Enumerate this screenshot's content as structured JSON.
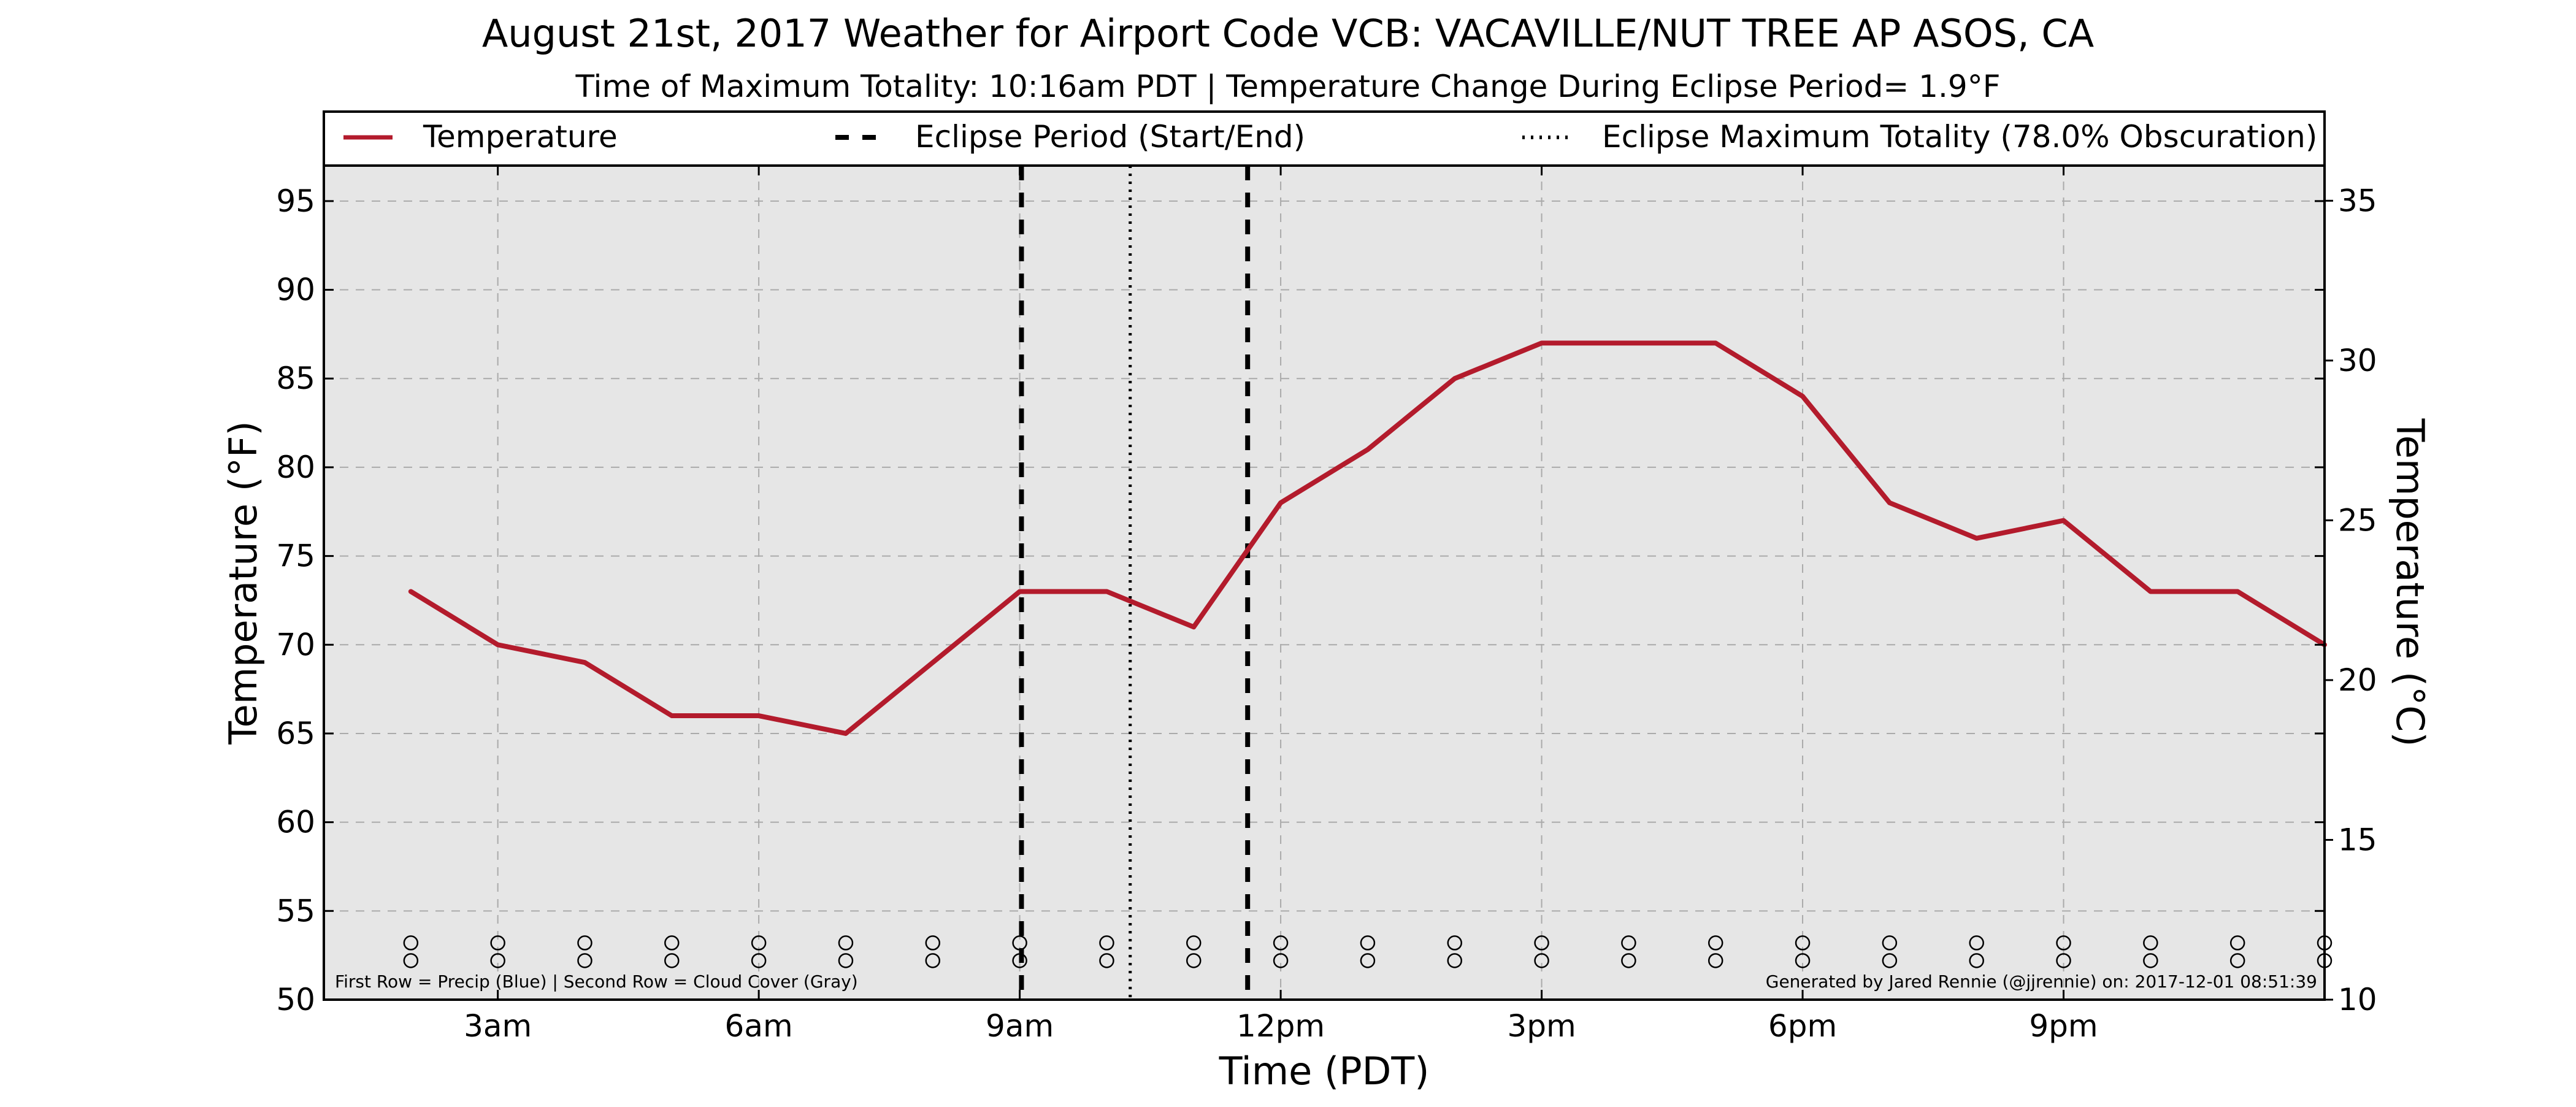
{
  "chart_data": {
    "type": "line",
    "title": "August 21st, 2017 Weather for Airport Code VCB: VACAVILLE/NUT TREE AP ASOS, CA",
    "subtitle": "Time of Maximum Totality: 10:16am PDT | Temperature Change During Eclipse Period= 1.9°F",
    "xlabel": "Time (PDT)",
    "ylabel": "Temperature (°F)",
    "ylabel_right": "Temperature (°C)",
    "xlim": [
      1.0,
      24.0
    ],
    "ylim": [
      50,
      97
    ],
    "ylim_right": [
      10,
      36.1
    ],
    "x_ticks": [
      {
        "x": 3,
        "label": "3am"
      },
      {
        "x": 6,
        "label": "6am"
      },
      {
        "x": 9,
        "label": "9am"
      },
      {
        "x": 12,
        "label": "12pm"
      },
      {
        "x": 15,
        "label": "3pm"
      },
      {
        "x": 18,
        "label": "6pm"
      },
      {
        "x": 21,
        "label": "9pm"
      }
    ],
    "y_ticks": [
      50,
      55,
      60,
      65,
      70,
      75,
      80,
      85,
      90,
      95
    ],
    "y_ticks_right": [
      10,
      15,
      20,
      25,
      30,
      35
    ],
    "grid": true,
    "legend_position": "top",
    "series": [
      {
        "name": "Temperature",
        "color": "#b31b2c",
        "x": [
          2,
          3,
          4,
          5,
          6,
          7,
          8,
          9,
          10,
          11,
          12,
          13,
          14,
          15,
          16,
          17,
          18,
          19,
          20,
          21,
          22,
          23,
          24
        ],
        "y": [
          73,
          70,
          69,
          66,
          66,
          65,
          69,
          73,
          73,
          71,
          78,
          81,
          85,
          87,
          87,
          87,
          84,
          78,
          76,
          77,
          73,
          73,
          70
        ]
      }
    ],
    "vertical_lines": [
      {
        "name": "Eclipse Period (Start/End)",
        "style": "dashed",
        "x": [
          9.02,
          11.62
        ]
      },
      {
        "name": "Eclipse Maximum Totality (78.0% Obscuration)",
        "style": "dotted",
        "x": [
          10.27
        ]
      }
    ],
    "marker_rows": {
      "x": [
        2,
        3,
        4,
        5,
        6,
        7,
        8,
        9,
        10,
        11,
        12,
        13,
        14,
        15,
        16,
        17,
        18,
        19,
        20,
        21,
        22,
        23,
        24
      ],
      "row1_y": 53.2,
      "row2_y": 52.2,
      "symbol": "O"
    },
    "annotations": {
      "left": "First Row = Precip (Blue) | Second Row = Cloud Cover (Gray)",
      "right": "Generated by Jared Rennie (@jjrennie) on: 2017-12-01 08:51:39"
    },
    "colors": {
      "plot_background": "#e6e6e6",
      "grid": "#aaaaaa",
      "line": "#b31b2c",
      "axes": "#000000"
    }
  }
}
